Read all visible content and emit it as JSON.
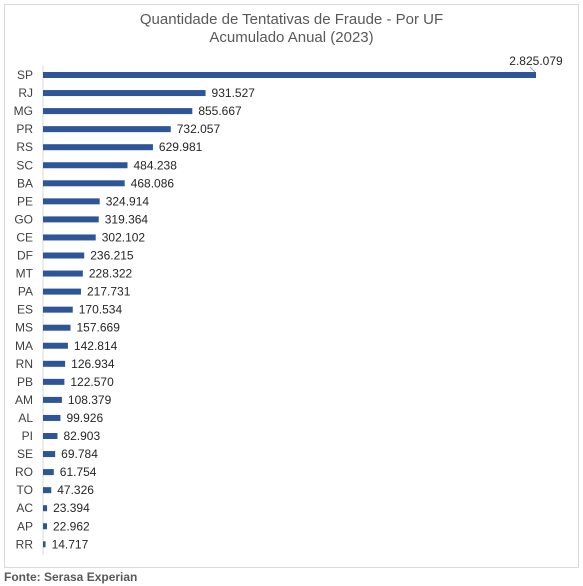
{
  "chart_data": {
    "type": "bar",
    "orientation": "horizontal",
    "title": "Quantidade de Tentativas de Fraude - Por UF",
    "subtitle": "Acumulado Anual (2023)",
    "categories": [
      "SP",
      "RJ",
      "MG",
      "PR",
      "RS",
      "SC",
      "BA",
      "PE",
      "GO",
      "CE",
      "DF",
      "MT",
      "PA",
      "ES",
      "MS",
      "MA",
      "RN",
      "PB",
      "AM",
      "AL",
      "PI",
      "SE",
      "RO",
      "TO",
      "AC",
      "AP",
      "RR"
    ],
    "values": [
      2825079,
      931527,
      855667,
      732057,
      629981,
      484238,
      468086,
      324914,
      319364,
      302102,
      236215,
      228322,
      217731,
      170534,
      157669,
      142814,
      126934,
      122570,
      108379,
      99926,
      82903,
      69784,
      61754,
      47326,
      23394,
      22962,
      14717
    ],
    "value_labels": [
      "2.825.079",
      "931.527",
      "855.667",
      "732.057",
      "629.981",
      "484.238",
      "468.086",
      "324.914",
      "319.364",
      "302.102",
      "236.215",
      "228.322",
      "217.731",
      "170.534",
      "157.669",
      "142.814",
      "126.934",
      "122.570",
      "108.379",
      "99.926",
      "82.903",
      "69.784",
      "61.754",
      "47.326",
      "23.394",
      "22.962",
      "14.717"
    ],
    "bar_color": "#2e5597",
    "grid": false,
    "legend": "none"
  },
  "source": "Fonte: Serasa Experian"
}
